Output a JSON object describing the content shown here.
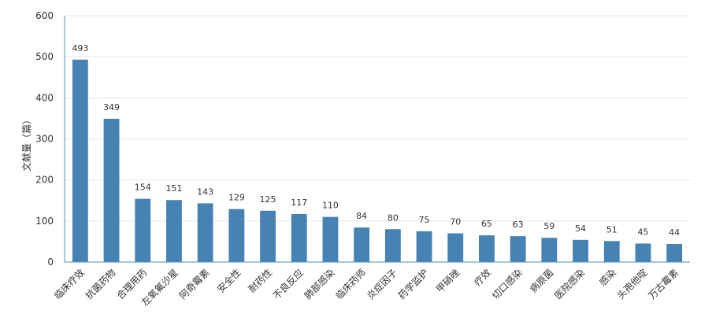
{
  "chart_data": {
    "type": "bar",
    "title": "",
    "xlabel": "",
    "ylabel": "文献量（篇）",
    "ylim": [
      0,
      600
    ],
    "yticks": [
      0,
      100,
      200,
      300,
      400,
      500,
      600
    ],
    "grid": true,
    "legend": "none",
    "bar_color": "#4682b4",
    "categories": [
      "临床疗效",
      "抗菌药物",
      "合理用药",
      "左氧氟沙星",
      "阿奇霉素",
      "安全性",
      "耐药性",
      "不良反应",
      "肺部感染",
      "临床药师",
      "炎症因子",
      "药学监护",
      "甲硝唑",
      "疗效",
      "切口感染",
      "病原菌",
      "医院感染",
      "感染",
      "头孢他啶",
      "万古霉素"
    ],
    "values": [
      493,
      349,
      154,
      151,
      143,
      129,
      125,
      117,
      110,
      84,
      80,
      75,
      70,
      65,
      63,
      59,
      54,
      51,
      45,
      44
    ]
  }
}
